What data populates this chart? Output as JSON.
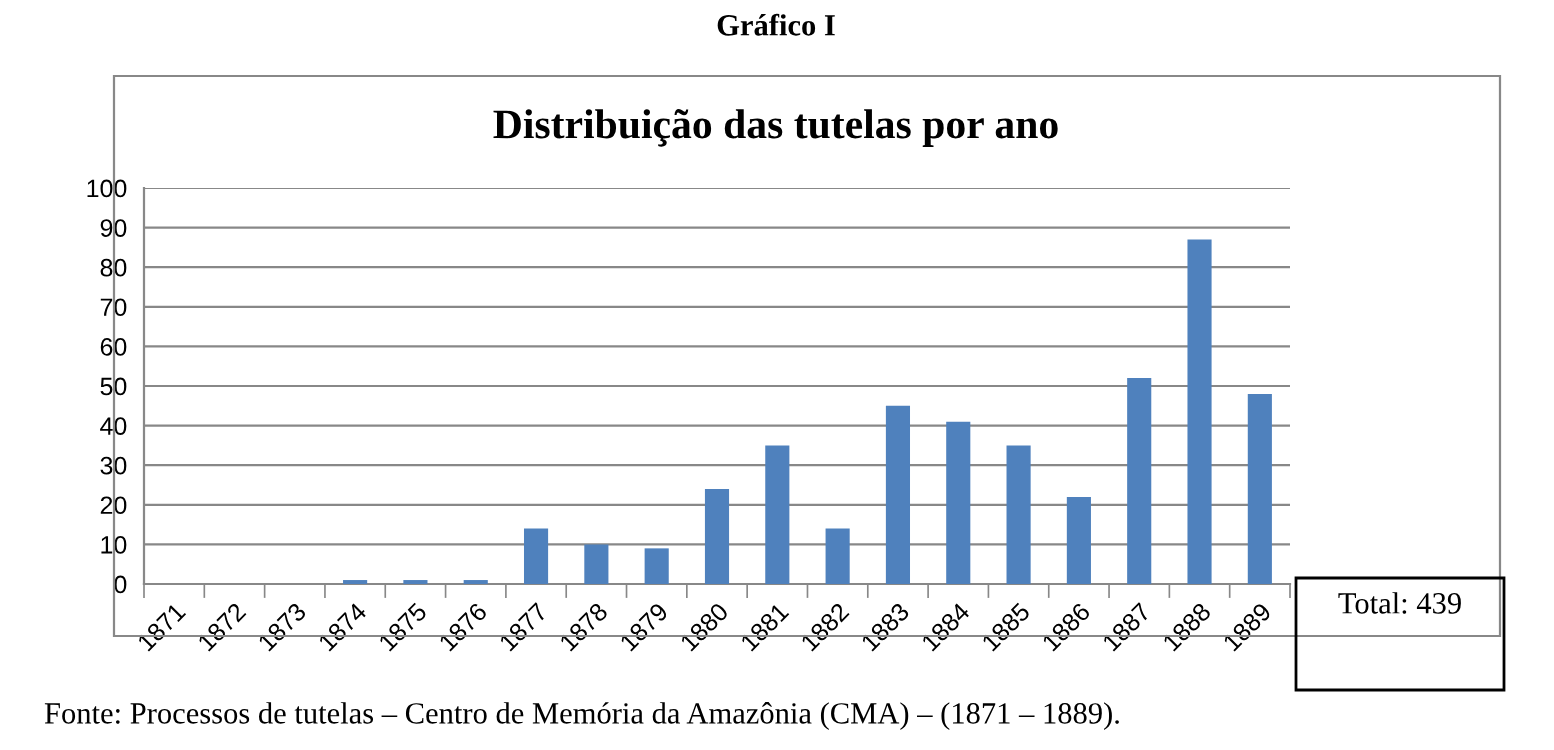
{
  "chart_data": {
    "type": "bar",
    "title": "Gráfico I",
    "subtitle": "Distribuição das tutelas por ano",
    "categories": [
      "1871",
      "1872",
      "1873",
      "1874",
      "1875",
      "1876",
      "1877",
      "1878",
      "1879",
      "1880",
      "1881",
      "1882",
      "1883",
      "1884",
      "1885",
      "1886",
      "1887",
      "1888",
      "1889"
    ],
    "values": [
      0,
      0,
      0,
      1,
      1,
      1,
      14,
      10,
      9,
      24,
      35,
      14,
      45,
      41,
      35,
      22,
      52,
      87,
      48
    ],
    "color": "#4f81bd",
    "ylim": [
      0,
      100
    ],
    "yticks": [
      0,
      10,
      20,
      30,
      40,
      50,
      60,
      70,
      80,
      90,
      100
    ],
    "grid": "y",
    "annotations": [
      "Total: 439",
      "Fonte: Processos de tutelas – Centro de Memória da Amazônia (CMA) – (1871 – 1889)."
    ]
  }
}
